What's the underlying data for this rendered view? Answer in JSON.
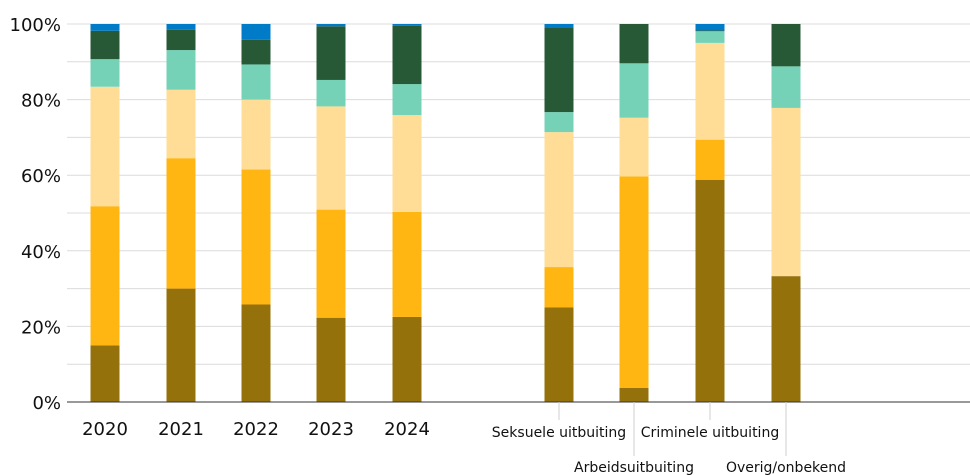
{
  "chart_data": {
    "type": "bar",
    "stacked": true,
    "percent": true,
    "ylim": [
      0,
      100
    ],
    "y_ticks": [
      "0%",
      "20%",
      "40%",
      "60%",
      "80%",
      "100%"
    ],
    "y_tick_values": [
      0,
      20,
      40,
      60,
      80,
      100
    ],
    "grid": true,
    "colors": [
      "#94710b",
      "#ffb612",
      "#ffdd96",
      "#76d2b6",
      "#275937",
      "#007bc7"
    ],
    "groups": [
      {
        "categories": [
          "2020",
          "2021",
          "2022",
          "2023",
          "2024"
        ],
        "series_values": [
          [
            15,
            30,
            25.8,
            22.3,
            22.5
          ],
          [
            36.8,
            34.5,
            35.7,
            28.6,
            27.8
          ],
          [
            31.6,
            18.1,
            18.5,
            27.3,
            25.6
          ],
          [
            7.3,
            10.5,
            9.3,
            7,
            8.2
          ],
          [
            7.5,
            5.4,
            6.5,
            14.2,
            15.4
          ],
          [
            1.8,
            1.5,
            4.2,
            0.6,
            0.5
          ]
        ]
      },
      {
        "categories": [
          "Seksuele uitbuiting",
          "Arbeidsuitbuiting",
          "Criminele uitbuiting",
          "Overig/onbekend"
        ],
        "series_values": [
          [
            25,
            3.7,
            58.8,
            33.3
          ],
          [
            10.7,
            56,
            10.6,
            0
          ],
          [
            35.7,
            15.5,
            25.6,
            44.5
          ],
          [
            5.3,
            14.4,
            3.1,
            11
          ],
          [
            22.4,
            10.4,
            0.2,
            11.2
          ],
          [
            0.9,
            0,
            1.7,
            0
          ]
        ]
      }
    ]
  }
}
